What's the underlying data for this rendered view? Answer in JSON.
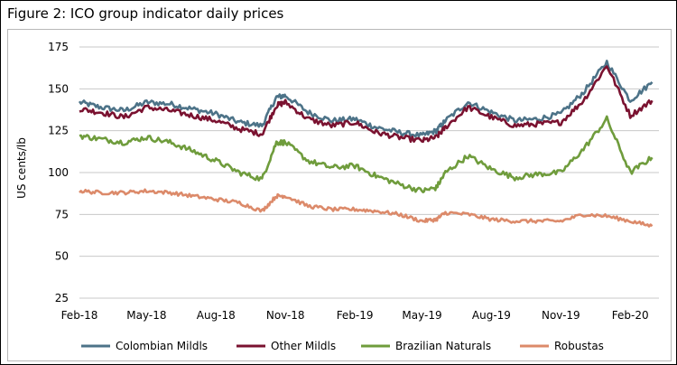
{
  "figure": {
    "title": "Figure 2: ICO group indicator daily prices"
  },
  "chart_data": {
    "type": "line",
    "title": "Figure 2: ICO group indicator daily prices",
    "xlabel": "",
    "ylabel": "US cents/lb",
    "ylim": [
      25,
      175
    ],
    "yticks": [
      25,
      50,
      75,
      100,
      125,
      150,
      175
    ],
    "xlim": [
      "2018-02-01",
      "2020-03-10"
    ],
    "x_ticks": [
      "Feb-18",
      "May-18",
      "Aug-18",
      "Nov-18",
      "Feb-19",
      "May-19",
      "Aug-19",
      "Nov-19",
      "Feb-20"
    ],
    "x_tick_dates": [
      "2018-02-01",
      "2018-05-01",
      "2018-08-01",
      "2018-11-01",
      "2019-02-01",
      "2019-05-01",
      "2019-08-01",
      "2019-11-01",
      "2020-02-01"
    ],
    "grid": "horizontal",
    "legend_position": "bottom",
    "x": [
      "2018-02-01",
      "2018-03-01",
      "2018-04-01",
      "2018-05-01",
      "2018-06-01",
      "2018-07-01",
      "2018-08-01",
      "2018-09-01",
      "2018-10-01",
      "2018-10-20",
      "2018-11-01",
      "2018-12-01",
      "2019-01-01",
      "2019-02-01",
      "2019-03-01",
      "2019-04-01",
      "2019-05-01",
      "2019-05-20",
      "2019-06-01",
      "2019-07-01",
      "2019-08-01",
      "2019-09-01",
      "2019-10-01",
      "2019-11-01",
      "2019-12-01",
      "2020-01-01",
      "2020-02-01",
      "2020-03-01"
    ],
    "series": [
      {
        "name": "Colombian Mildls",
        "color": "#4d7388",
        "values": [
          142,
          139,
          137,
          142,
          141,
          138,
          135,
          130,
          128,
          145,
          146,
          136,
          131,
          132,
          127,
          124,
          122,
          125,
          131,
          142,
          136,
          131,
          132,
          135,
          148,
          166,
          143,
          154
        ]
      },
      {
        "name": "Other Mildls",
        "color": "#7a1230",
        "values": [
          138,
          136,
          133,
          139,
          137,
          134,
          131,
          126,
          123,
          140,
          142,
          132,
          128,
          130,
          124,
          121,
          119,
          121,
          127,
          139,
          133,
          128,
          129,
          130,
          143,
          164,
          134,
          143
        ]
      },
      {
        "name": "Brazilian Naturals",
        "color": "#6f9c3c",
        "values": [
          122,
          120,
          118,
          121,
          118,
          113,
          107,
          100,
          96,
          118,
          118,
          107,
          103,
          104,
          98,
          93,
          89,
          91,
          100,
          110,
          102,
          97,
          99,
          100,
          114,
          132,
          100,
          109
        ]
      },
      {
        "name": "Robustas",
        "color": "#dc8a6a",
        "values": [
          89,
          88,
          88,
          89,
          88,
          86,
          84,
          82,
          77,
          86,
          86,
          80,
          78,
          78,
          77,
          75,
          71,
          72,
          76,
          75,
          72,
          71,
          71,
          71,
          75,
          74,
          71,
          68
        ]
      }
    ]
  }
}
